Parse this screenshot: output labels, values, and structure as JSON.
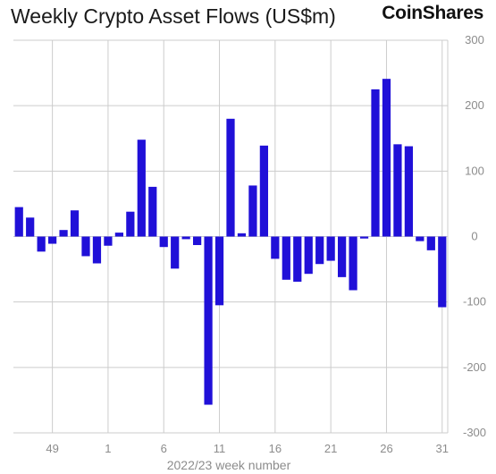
{
  "header": {
    "title": "Weekly Crypto Asset Flows (US$m)",
    "brand": "CoinShares"
  },
  "colors": {
    "bar": "#2010d8",
    "grid": "#cccccc",
    "axis_text": "#8c8c8c"
  },
  "chart_data": {
    "type": "bar",
    "title": "Weekly Crypto Asset Flows (US$m)",
    "xlabel": "2022/23 week number",
    "ylabel": "",
    "ylim": [
      -300,
      300
    ],
    "yticks": [
      300,
      200,
      100,
      0,
      -100,
      -200,
      -300
    ],
    "x_tick_labels": [
      {
        "label": "49",
        "index": 3
      },
      {
        "label": "1",
        "index": 8
      },
      {
        "label": "6",
        "index": 13
      },
      {
        "label": "11",
        "index": 18
      },
      {
        "label": "16",
        "index": 23
      },
      {
        "label": "21",
        "index": 28
      },
      {
        "label": "26",
        "index": 33
      },
      {
        "label": "31",
        "index": 38
      }
    ],
    "values": [
      45,
      29,
      -23,
      -11,
      10,
      40,
      -30,
      -41,
      -14,
      6,
      38,
      148,
      76,
      -16,
      -49,
      -4,
      -13,
      -257,
      -105,
      180,
      5,
      78,
      139,
      -34,
      -66,
      -69,
      -57,
      -42,
      -37,
      -62,
      -82,
      -3,
      225,
      241,
      141,
      138,
      -7,
      -21,
      -108
    ]
  }
}
